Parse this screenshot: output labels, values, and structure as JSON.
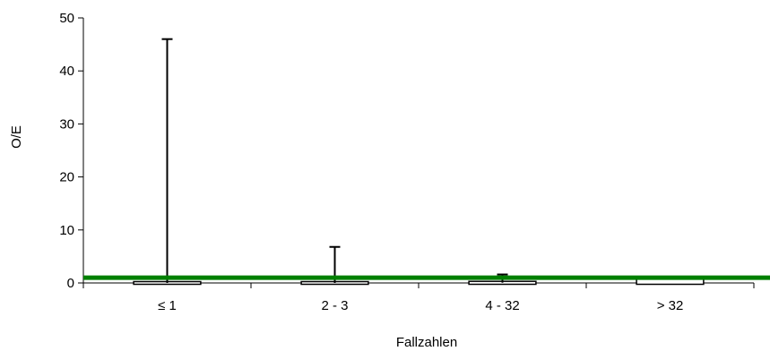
{
  "chart_data": {
    "type": "bar",
    "title": "",
    "xlabel": "Fallzahlen",
    "ylabel": "O/E",
    "ylim": [
      0,
      50
    ],
    "yticks": [
      0,
      10,
      20,
      30,
      40,
      50
    ],
    "grid": false,
    "legend": "none",
    "categories": [
      "≤ 1",
      "2 - 3",
      "4 - 32",
      "> 32"
    ],
    "series": [
      {
        "values": [
          0,
          0,
          0.05,
          0.6
        ],
        "error_upper": [
          46.0,
          6.8,
          1.6,
          0.6
        ],
        "color": "#000000"
      }
    ],
    "reference_line": {
      "value": 1.0,
      "color": "#008000"
    }
  }
}
